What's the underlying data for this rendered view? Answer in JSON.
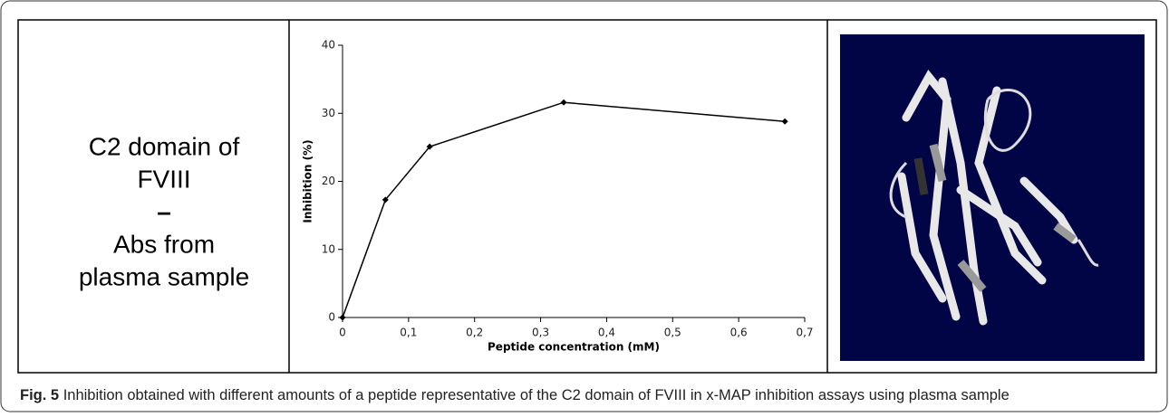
{
  "panel_label": [
    "C2 domain of",
    "FVIII",
    "–",
    "Abs from",
    "plasma sample"
  ],
  "caption": {
    "label": "Fig. 5",
    "text": "Inhibition obtained with different amounts of a peptide representative of the C2 domain of FVIII in x-MAP inhibition assays using plasma sample"
  },
  "chart_data": {
    "type": "line",
    "x_label": "Peptide concentration (mM)",
    "y_label": "Inhibition (%)",
    "x": [
      0,
      0.065,
      0.132,
      0.335,
      0.67
    ],
    "series": [
      {
        "color": "#000000",
        "values": [
          0,
          17.3,
          25.1,
          31.6,
          28.8
        ]
      }
    ],
    "xlim": [
      0,
      0.7
    ],
    "xticks": [
      0,
      {
        "value": 0.1,
        "label": "0,1"
      },
      {
        "value": 0.2,
        "label": "0,2"
      },
      {
        "value": 0.3,
        "label": "0,3"
      },
      {
        "value": 0.4,
        "label": "0,4"
      },
      {
        "value": 0.5,
        "label": "0,5"
      },
      {
        "value": 0.6,
        "label": "0,6"
      },
      {
        "value": 0.7,
        "label": "0,7"
      }
    ],
    "ylim": [
      0,
      40
    ],
    "yticks": [
      0,
      10,
      20,
      30,
      40
    ],
    "grid": false
  }
}
